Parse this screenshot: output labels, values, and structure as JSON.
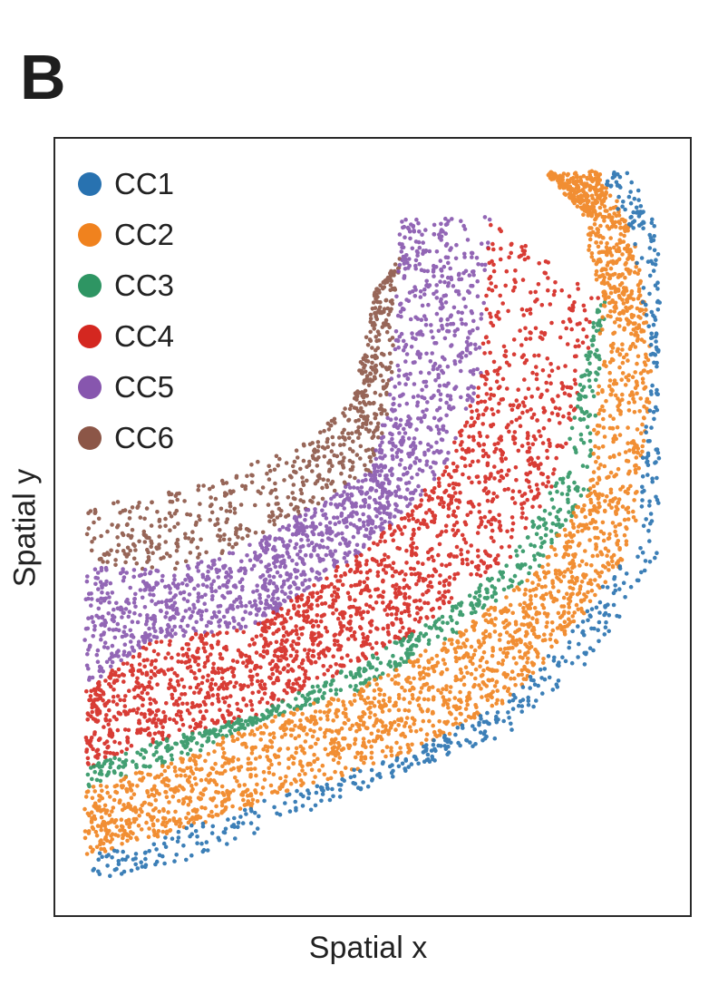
{
  "panel_label": "B",
  "chart_data": {
    "type": "scatter",
    "title": "",
    "xlabel": "Spatial x",
    "ylabel": "Spatial y",
    "xticks": [],
    "yticks": [],
    "grid": false,
    "legend_position": "top-left",
    "series": [
      {
        "name": "CC1",
        "color": "#2872b0"
      },
      {
        "name": "CC2",
        "color": "#f0821e"
      },
      {
        "name": "CC3",
        "color": "#2e9563"
      },
      {
        "name": "CC4",
        "color": "#d42720"
      },
      {
        "name": "CC5",
        "color": "#8756ae"
      },
      {
        "name": "CC6",
        "color": "#8c5647"
      }
    ],
    "description_note": "spatial scatter of cells forming curved concentric bands"
  }
}
